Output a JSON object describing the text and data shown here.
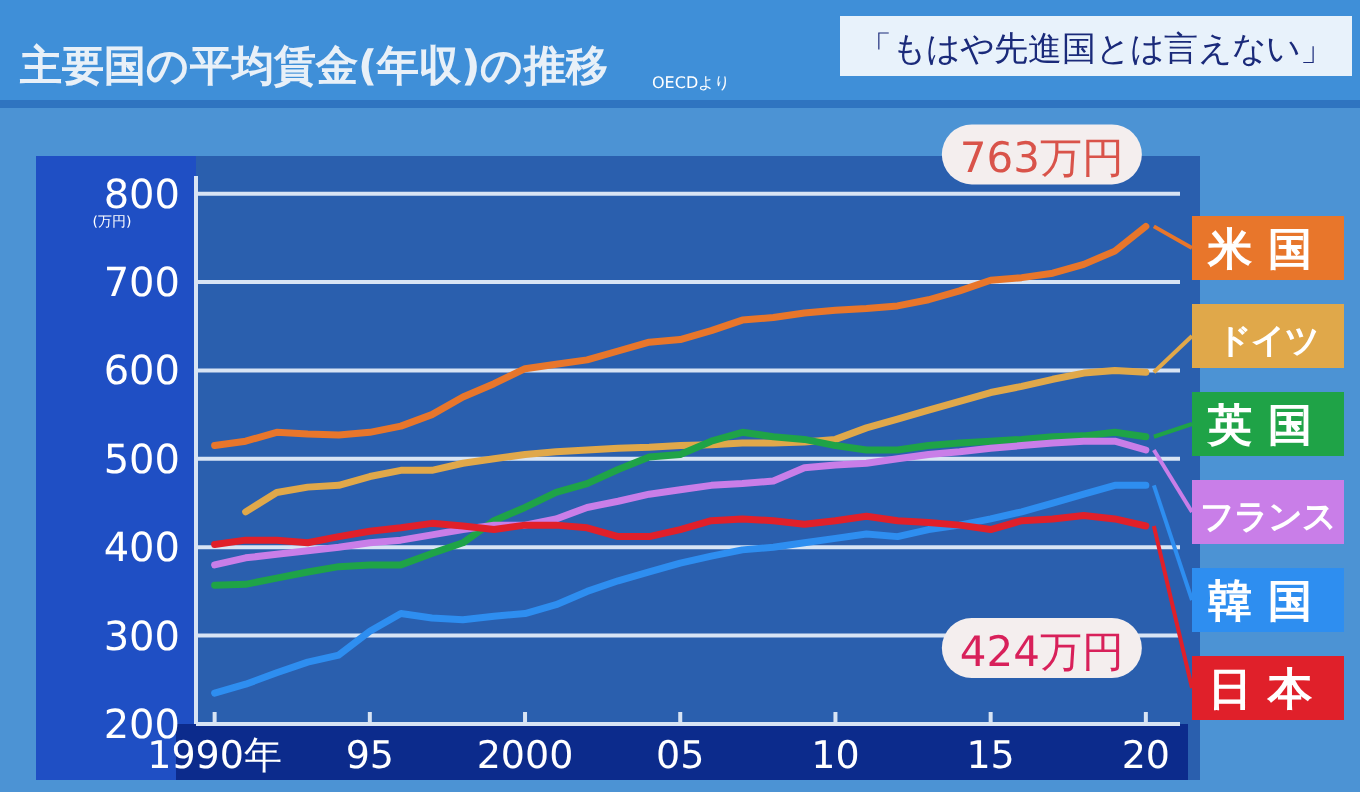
{
  "chart_data": {
    "type": "line",
    "title": "主要国の平均賃金(年収)の推移",
    "subtitle": "「もはや先進国とは言えない」",
    "ylabel": "(万円)",
    "x": [
      1990,
      1991,
      1992,
      1993,
      1994,
      1995,
      1996,
      1997,
      1998,
      1999,
      2000,
      2001,
      2002,
      2003,
      2004,
      2005,
      2006,
      2007,
      2008,
      2009,
      2010,
      2011,
      2012,
      2013,
      2014,
      2015,
      2016,
      2017,
      2018,
      2019,
      2020
    ],
    "series": [
      {
        "name": "米国",
        "color": "#e8762b",
        "values": [
          515,
          520,
          530,
          528,
          527,
          530,
          537,
          550,
          570,
          585,
          602,
          607,
          612,
          622,
          632,
          635,
          645,
          657,
          660,
          665,
          668,
          670,
          673,
          680,
          690,
          702,
          705,
          710,
          720,
          735,
          763
        ]
      },
      {
        "name": "ドイツ",
        "color": "#e0a84a",
        "values": [
          null,
          440,
          462,
          468,
          470,
          480,
          487,
          487,
          495,
          500,
          505,
          508,
          510,
          512,
          513,
          515,
          516,
          518,
          518,
          519,
          522,
          535,
          545,
          555,
          565,
          575,
          582,
          590,
          597,
          600,
          598
        ]
      },
      {
        "name": "英国",
        "color": "#1fa347",
        "values": [
          357,
          358,
          365,
          372,
          378,
          380,
          380,
          393,
          405,
          430,
          445,
          462,
          472,
          488,
          502,
          505,
          520,
          530,
          525,
          522,
          515,
          510,
          510,
          515,
          518,
          520,
          522,
          525,
          526,
          530,
          525
        ]
      },
      {
        "name": "フランス",
        "color": "#c97ee8",
        "values": [
          380,
          388,
          392,
          396,
          400,
          405,
          408,
          414,
          420,
          425,
          425,
          432,
          445,
          452,
          460,
          465,
          470,
          472,
          475,
          490,
          493,
          495,
          500,
          505,
          508,
          512,
          515,
          518,
          520,
          520,
          510
        ]
      },
      {
        "name": "韓国",
        "color": "#2e8ef0",
        "values": [
          235,
          245,
          258,
          270,
          278,
          305,
          325,
          320,
          318,
          322,
          325,
          335,
          350,
          362,
          372,
          382,
          390,
          397,
          400,
          405,
          410,
          415,
          412,
          420,
          425,
          432,
          440,
          450,
          460,
          470,
          470
        ]
      },
      {
        "name": "日本",
        "color": "#e0202a",
        "values": [
          403,
          408,
          408,
          405,
          412,
          418,
          422,
          427,
          424,
          420,
          425,
          425,
          422,
          412,
          412,
          420,
          430,
          432,
          430,
          426,
          430,
          435,
          430,
          428,
          425,
          420,
          430,
          432,
          436,
          432,
          424
        ]
      }
    ],
    "xlim": [
      1989.4,
      2021.1
    ],
    "ylim": [
      200,
      820
    ],
    "xticks": [
      {
        "value": 1990,
        "label": "1990年"
      },
      {
        "value": 1995,
        "label": "95"
      },
      2000,
      {
        "value": 2005,
        "label": "05"
      },
      {
        "value": 2010,
        "label": "10"
      },
      {
        "value": 2015,
        "label": "15"
      },
      {
        "value": 2020,
        "label": "20"
      }
    ],
    "yticks": [
      200,
      300,
      400,
      500,
      600,
      700,
      800
    ],
    "grid": "y",
    "legend": "right",
    "line_style": "solid",
    "marker": "none",
    "annotations": [
      "OECDより",
      {
        "text": "763万円",
        "x": 2020,
        "y": 763
      },
      {
        "text": "424万円",
        "x": 2020,
        "y": 424
      }
    ]
  }
}
